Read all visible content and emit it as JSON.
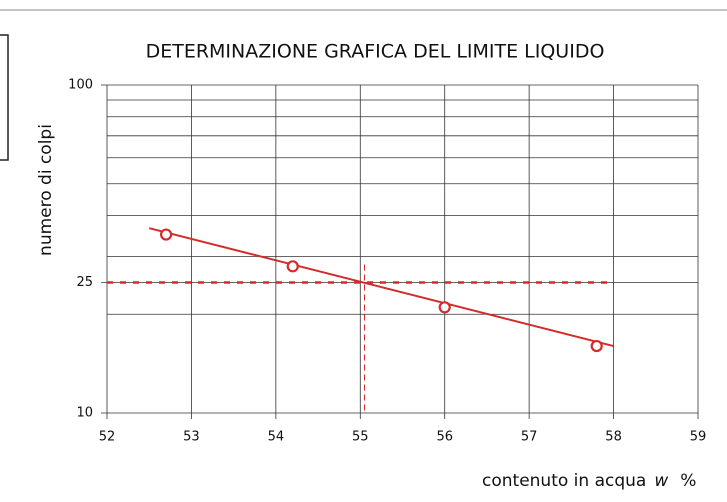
{
  "chart_data": {
    "type": "scatter",
    "title": "DETERMINAZIONE GRAFICA DEL LIMITE LIQUIDO",
    "y_label": "numero di colpi",
    "x_label": {
      "text": "contenuto in acqua",
      "symbol": "w",
      "unit": "%"
    },
    "x": [
      52.7,
      54.2,
      56.0,
      57.8
    ],
    "values": [
      35,
      28,
      21,
      16
    ],
    "color": "#d42a2a",
    "fit": {
      "x": [
        52.5,
        58.0
      ],
      "values": [
        36.6,
        16
      ]
    },
    "liquid_limit": {
      "x": 55.05,
      "y": 25
    },
    "xlim": [
      52,
      59
    ],
    "xticks": [
      52,
      53,
      54,
      55,
      56,
      57,
      58,
      59
    ],
    "ylim": [
      10,
      100
    ],
    "yticks": [
      10,
      25,
      100
    ],
    "ygrid": [
      20,
      30,
      40,
      50,
      60,
      70,
      80,
      90
    ],
    "log_y": true,
    "grid": true
  }
}
